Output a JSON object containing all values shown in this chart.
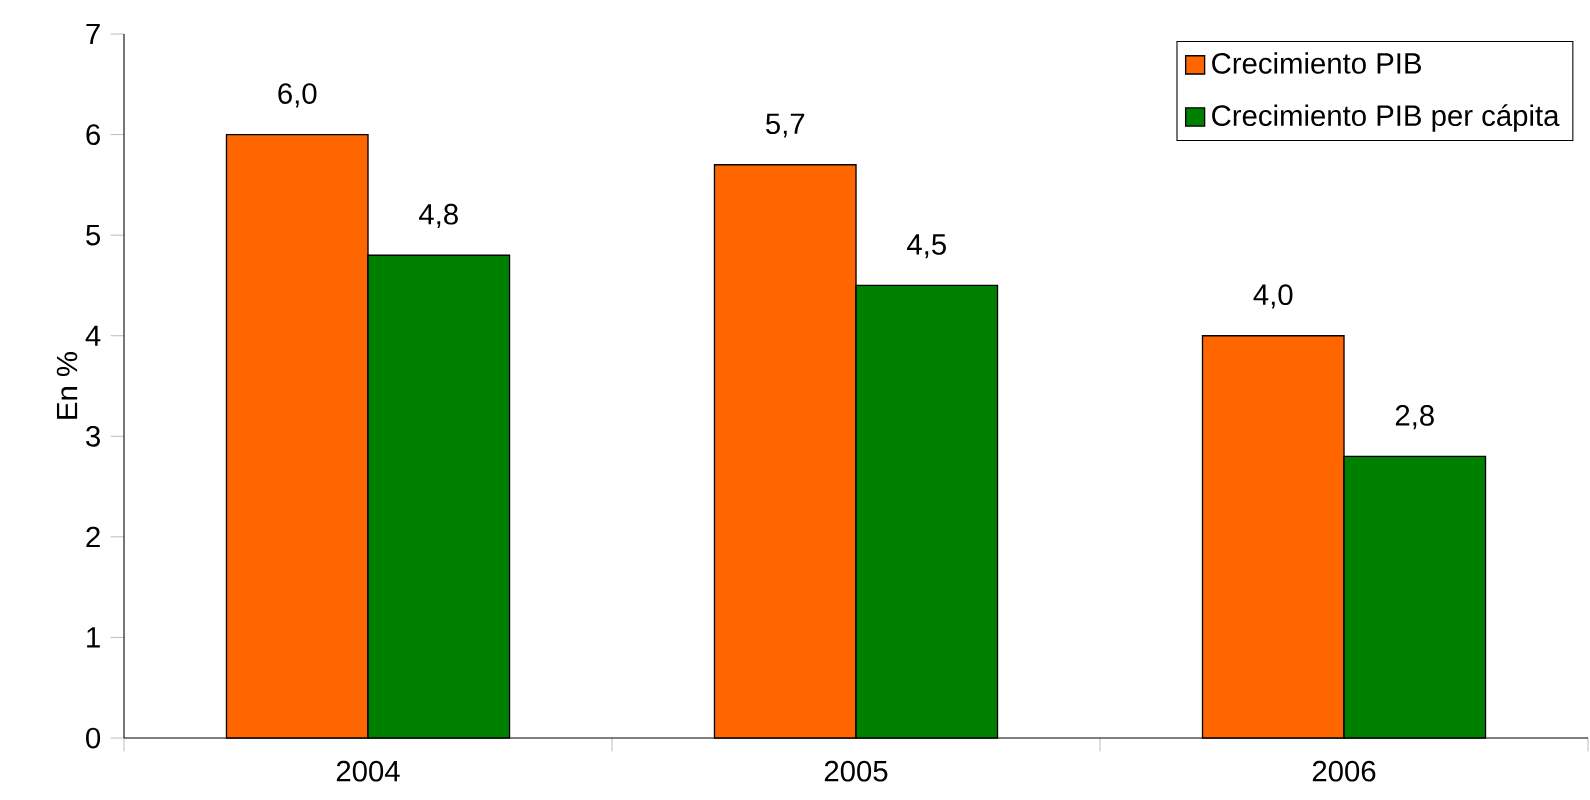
{
  "chart_data": {
    "type": "bar",
    "ylabel": "En %",
    "categories": [
      "2004",
      "2005",
      "2006"
    ],
    "series": [
      {
        "name": "Crecimiento PIB",
        "color": "#ff6600",
        "values": [
          6.0,
          5.7,
          4.0
        ],
        "value_labels": [
          "6,0",
          "5,7",
          "4,0"
        ]
      },
      {
        "name": "Crecimiento PIB per cápita",
        "color": "#008000",
        "values": [
          4.8,
          4.5,
          2.8
        ],
        "value_labels": [
          "4,8",
          "4,5",
          "2,8"
        ]
      }
    ],
    "ylim": [
      0,
      7
    ],
    "yticks": [
      0,
      1,
      2,
      3,
      4,
      5,
      6,
      7
    ],
    "grid": false,
    "legend": "top right"
  }
}
